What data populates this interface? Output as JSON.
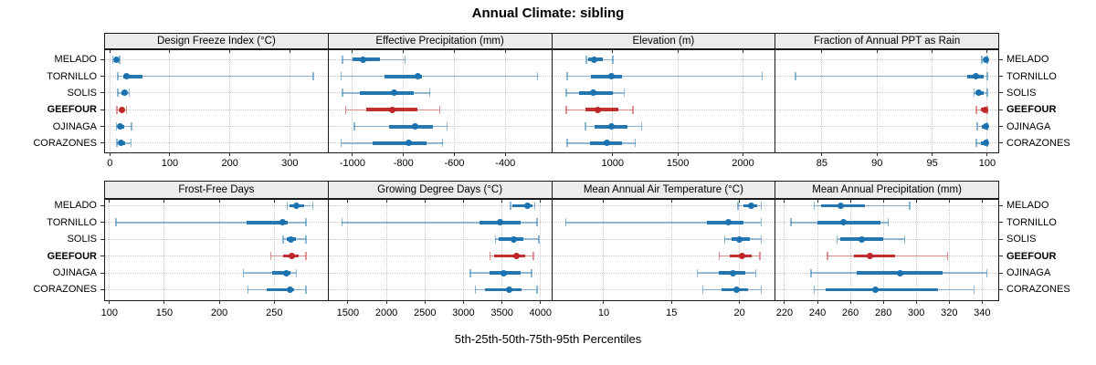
{
  "title": "Annual Climate: sibling",
  "caption": "5th-25th-50th-75th-95th Percentiles",
  "colors": {
    "blue": "#1c72ae",
    "red": "#c02728",
    "header_bg": "#ececec",
    "grid": "#c9c9c9",
    "border": "#1a1a1a",
    "tick": "#333333"
  },
  "chart_data": {
    "type": "trellis-dot-whisker",
    "note": "Each cell shows 5th-25th-50th-75th-95th percentile whiskers per station; thin line 5-95, thick bar 25-75, dot at median.",
    "stations": [
      "MELADO",
      "TORNILLO",
      "SOLIS",
      "GEEFOUR",
      "OJINAGA",
      "CORAZONES"
    ],
    "highlight_station": "GEEFOUR",
    "percentile_order": [
      "p5",
      "p25",
      "p50",
      "p75",
      "p95"
    ],
    "legend_position": "none",
    "grid": "dotted",
    "rows": [
      {
        "panels": [
          {
            "title": "Design Freeze Index (°C)",
            "xlim": [
              -8,
              363
            ],
            "ticks": [
              0,
              100,
              200,
              300
            ],
            "values": [
              [
                5,
                8,
                11,
                14,
                16
              ],
              [
                13,
                22,
                28,
                55,
                339
              ],
              [
                13,
                20,
                25,
                29,
                32
              ],
              [
                12,
                16,
                20,
                24,
                28
              ],
              [
                11,
                14,
                17,
                24,
                36
              ],
              [
                12,
                15,
                19,
                26,
                35
              ]
            ]
          },
          {
            "title": "Effective Precipitation (mm)",
            "xlim": [
              -1094,
              -220
            ],
            "ticks": [
              -1000,
              -800,
              -600,
              -400
            ],
            "values": [
              [
                -1039,
                -1000,
                -958,
                -893,
                -794
              ],
              [
                -1044,
                -875,
                -744,
                -726,
                -273
              ],
              [
                -1039,
                -971,
                -836,
                -761,
                -696
              ],
              [
                -1026,
                -946,
                -845,
                -744,
                -658
              ],
              [
                -992,
                -857,
                -753,
                -684,
                -628
              ],
              [
                -1044,
                -922,
                -778,
                -708,
                -646
              ]
            ]
          },
          {
            "title": "Elevation (m)",
            "xlim": [
              536,
              2243
            ],
            "ticks": [
              1000,
              1500,
              2000
            ],
            "values": [
              [
                800,
                810,
                856,
                926,
                1002
              ],
              [
                651,
                837,
                993,
                1070,
                2146
              ],
              [
                644,
                744,
                849,
                1000,
                1088
              ],
              [
                644,
                791,
                888,
                1047,
                1155
              ],
              [
                791,
                861,
                993,
                1116,
                1221
              ],
              [
                651,
                826,
                953,
                1070,
                1174
              ]
            ]
          },
          {
            "title": "Fraction of Annual PPT as Rain",
            "xlim": [
              80.8,
              101.0
            ],
            "ticks": [
              85,
              90,
              95,
              100
            ],
            "values": [
              [
                99.5,
                99.7,
                99.9,
                100,
                100
              ],
              [
                82.6,
                98.2,
                99.0,
                99.7,
                100
              ],
              [
                98.8,
                99.0,
                99.2,
                99.7,
                100
              ],
              [
                99.0,
                99.4,
                99.8,
                100,
                100
              ],
              [
                99.1,
                99.5,
                99.9,
                100,
                100
              ],
              [
                99.0,
                99.4,
                99.9,
                100,
                100
              ]
            ]
          }
        ]
      },
      {
        "panels": [
          {
            "title": "Frost-Free Days",
            "xlim": [
              96,
              298.6
            ],
            "ticks": [
              100,
              150,
              200,
              250
            ],
            "values": [
              [
                262,
                264,
                270,
                277,
                285
              ],
              [
                106,
                225,
                258,
                262,
                279
              ],
              [
                258,
                261,
                265,
                270,
                279
              ],
              [
                247,
                258,
                266,
                272,
                279
              ],
              [
                222,
                248,
                261,
                265,
                270
              ],
              [
                226,
                243,
                264,
                268,
                279
              ]
            ]
          },
          {
            "title": "Growing Degree Days (°C)",
            "xlim": [
              1249,
              4139
            ],
            "ticks": [
              1500,
              2000,
              2500,
              3000,
              3500,
              4000
            ],
            "values": [
              [
                3610,
                3640,
                3827,
                3894,
                3925
              ],
              [
                1421,
                3205,
                3480,
                3736,
                3953
              ],
              [
                3414,
                3461,
                3657,
                3776,
                3981
              ],
              [
                3343,
                3402,
                3685,
                3796,
                3906
              ],
              [
                3087,
                3343,
                3528,
                3736,
                3882
              ],
              [
                3154,
                3284,
                3591,
                3756,
                3953
              ]
            ]
          },
          {
            "title": "Mean Annual Air Temperature (°C)",
            "xlim": [
              6.2,
              22.6
            ],
            "ticks": [
              10,
              15,
              20
            ],
            "values": [
              [
                19.9,
                20.3,
                20.9,
                21.3,
                21.6
              ],
              [
                7.2,
                17.6,
                19.2,
                20.3,
                21.6
              ],
              [
                18.9,
                19.4,
                20.0,
                20.8,
                21.6
              ],
              [
                18.5,
                19.3,
                20.2,
                20.9,
                21.5
              ],
              [
                16.9,
                18.5,
                19.5,
                20.4,
                21.2
              ],
              [
                17.3,
                18.7,
                19.8,
                20.6,
                21.6
              ]
            ]
          },
          {
            "title": "Mean Annual Precipitation (mm)",
            "xlim": [
              214.6,
              349.8
            ],
            "ticks": [
              220,
              240,
              260,
              280,
              300,
              320,
              340
            ],
            "values": [
              [
                238,
                242,
                254,
                269,
                296
              ],
              [
                224,
                240,
                256,
                278,
                283
              ],
              [
                252,
                254,
                267,
                280,
                293
              ],
              [
                246,
                262,
                272,
                287,
                319
              ],
              [
                236,
                264,
                290,
                316,
                343
              ],
              [
                238,
                245,
                275,
                313,
                335
              ]
            ]
          }
        ]
      }
    ]
  }
}
